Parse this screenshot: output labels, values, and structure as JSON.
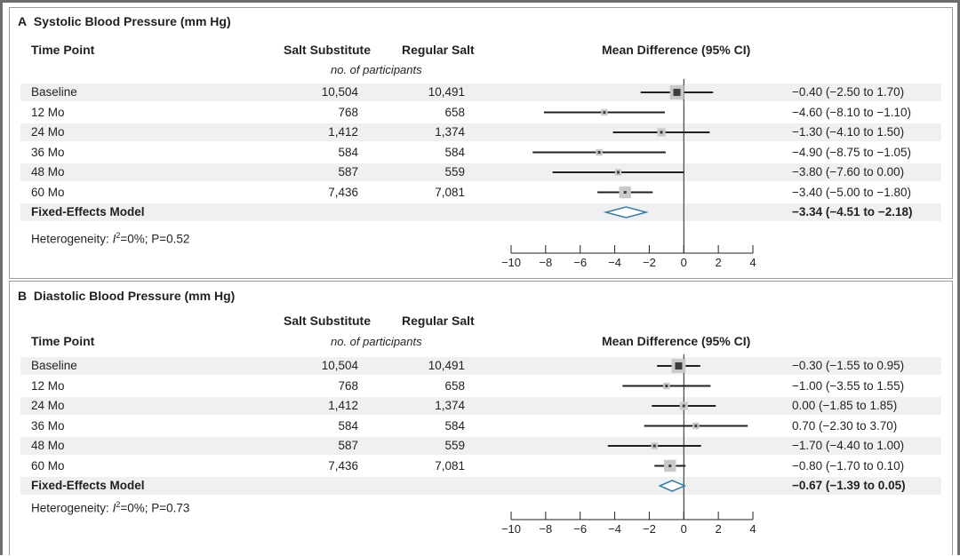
{
  "chart_data": [
    {
      "type": "forest",
      "panel_letter": "A",
      "title": "Systolic Blood Pressure (mm Hg)",
      "columns": {
        "time_point": "Time Point",
        "salt_substitute": "Salt Substitute",
        "regular_salt": "Regular Salt",
        "participants_note": "no. of participants",
        "mean_difference": "Mean Difference (95% CI)"
      },
      "rows": [
        {
          "label": "Baseline",
          "n_sub": "10,504",
          "n_reg": "10,491",
          "estimate": -0.4,
          "lower": -2.5,
          "upper": 1.7,
          "ci_text": "−0.40 (−2.50 to 1.70)",
          "weight": 0.9
        },
        {
          "label": "12 Mo",
          "n_sub": "768",
          "n_reg": "658",
          "estimate": -4.6,
          "lower": -8.1,
          "upper": -1.1,
          "ci_text": "−4.60 (−8.10 to −1.10)",
          "weight": 0.2
        },
        {
          "label": "24 Mo",
          "n_sub": "1,412",
          "n_reg": "1,374",
          "estimate": -1.3,
          "lower": -4.1,
          "upper": 1.5,
          "ci_text": "−1.30 (−4.10 to 1.50)",
          "weight": 0.35
        },
        {
          "label": "36 Mo",
          "n_sub": "584",
          "n_reg": "584",
          "estimate": -4.9,
          "lower": -8.75,
          "upper": -1.05,
          "ci_text": "−4.90 (−8.75 to −1.05)",
          "weight": 0.2
        },
        {
          "label": "48 Mo",
          "n_sub": "587",
          "n_reg": "559",
          "estimate": -3.8,
          "lower": -7.6,
          "upper": 0.0,
          "ci_text": "−3.80 (−7.60 to 0.00)",
          "weight": 0.2
        },
        {
          "label": "60 Mo",
          "n_sub": "7,436",
          "n_reg": "7,081",
          "estimate": -3.4,
          "lower": -5.0,
          "upper": -1.8,
          "ci_text": "−3.40 (−5.00 to −1.80)",
          "weight": 0.7
        }
      ],
      "summary": {
        "label": "Fixed-Effects Model",
        "estimate": -3.34,
        "lower": -4.51,
        "upper": -2.18,
        "ci_text": "−3.34 (−4.51 to −2.18)"
      },
      "heterogeneity": {
        "prefix": "Heterogeneity: ",
        "stat": "I",
        "sup": "2",
        "rest": "=0%; P=0.52"
      },
      "xlim": [
        -10,
        4
      ],
      "xticks": [
        -10,
        -8,
        -6,
        -4,
        -2,
        0,
        2,
        4
      ],
      "xtick_labels": [
        "−10",
        "−8",
        "−6",
        "−4",
        "−2",
        "0",
        "2",
        "4"
      ]
    },
    {
      "type": "forest",
      "panel_letter": "B",
      "title": "Diastolic Blood Pressure (mm Hg)",
      "columns": {
        "time_point": "Time Point",
        "salt_substitute": "Salt Substitute",
        "regular_salt": "Regular Salt",
        "participants_note": "no. of participants",
        "mean_difference": "Mean Difference (95% CI)"
      },
      "rows": [
        {
          "label": "Baseline",
          "n_sub": "10,504",
          "n_reg": "10,491",
          "estimate": -0.3,
          "lower": -1.55,
          "upper": 0.95,
          "ci_text": "−0.30 (−1.55 to 0.95)",
          "weight": 0.9
        },
        {
          "label": "12 Mo",
          "n_sub": "768",
          "n_reg": "658",
          "estimate": -1.0,
          "lower": -3.55,
          "upper": 1.55,
          "ci_text": "−1.00 (−3.55 to 1.55)",
          "weight": 0.2
        },
        {
          "label": "24 Mo",
          "n_sub": "1,412",
          "n_reg": "1,374",
          "estimate": 0.0,
          "lower": -1.85,
          "upper": 1.85,
          "ci_text": "0.00 (−1.85 to 1.85)",
          "weight": 0.35
        },
        {
          "label": "36 Mo",
          "n_sub": "584",
          "n_reg": "584",
          "estimate": 0.7,
          "lower": -2.3,
          "upper": 3.7,
          "ci_text": "0.70 (−2.30 to 3.70)",
          "weight": 0.2
        },
        {
          "label": "48 Mo",
          "n_sub": "587",
          "n_reg": "559",
          "estimate": -1.7,
          "lower": -4.4,
          "upper": 1.0,
          "ci_text": "−1.70 (−4.40 to 1.00)",
          "weight": 0.2
        },
        {
          "label": "60 Mo",
          "n_sub": "7,436",
          "n_reg": "7,081",
          "estimate": -0.8,
          "lower": -1.7,
          "upper": 0.1,
          "ci_text": "−0.80 (−1.70 to 0.10)",
          "weight": 0.7
        }
      ],
      "summary": {
        "label": "Fixed-Effects Model",
        "estimate": -0.67,
        "lower": -1.39,
        "upper": 0.05,
        "ci_text": "−0.67 (−1.39 to 0.05)"
      },
      "heterogeneity": {
        "prefix": "Heterogeneity: ",
        "stat": "I",
        "sup": "2",
        "rest": "=0%; P=0.73"
      },
      "xlim": [
        -10,
        4
      ],
      "xticks": [
        -10,
        -8,
        -6,
        -4,
        -2,
        0,
        2,
        4
      ],
      "xtick_labels": [
        "−10",
        "−8",
        "−6",
        "−4",
        "−2",
        "0",
        "2",
        "4"
      ]
    }
  ],
  "colors": {
    "marker": "#3d3d3f",
    "ci_line": "#231f20",
    "weight_box": "#c9c9cb",
    "summary_diamond": "#3a7ca5",
    "stripe": "#eef0f2",
    "border": "#6d6e70"
  }
}
